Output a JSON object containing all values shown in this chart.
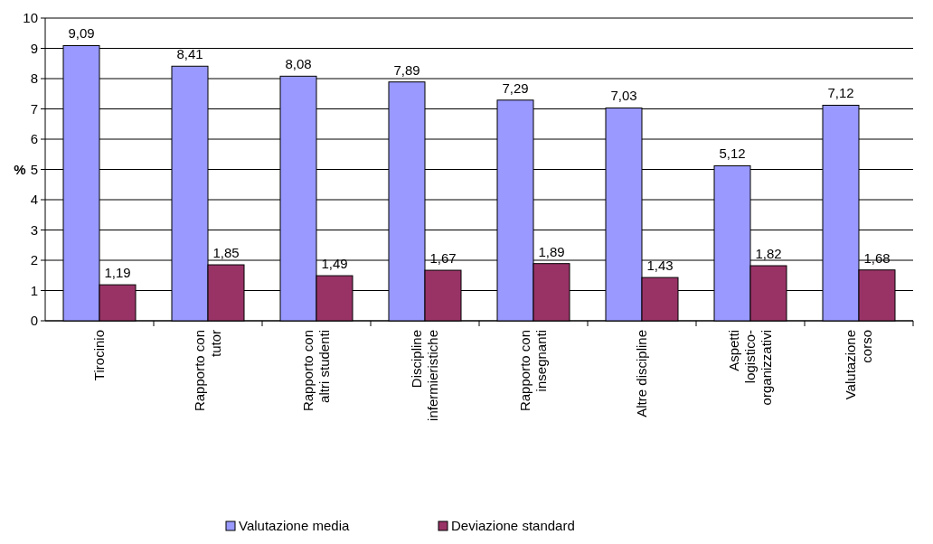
{
  "chart_data": {
    "type": "bar",
    "ylabel": "%",
    "categories": [
      "Tirocinio",
      "Rapporto con\ntutor",
      "Rapporto con\naltri studenti",
      "Discipline\ninfermieristiche",
      "Rapporto con\ninsegnanti",
      "Altre discipline",
      "Aspetti\nlogistico-\norganizzativi",
      "Valutazione\ncorso"
    ],
    "series": [
      {
        "name": "Valutazione media",
        "color": "#9999ff",
        "values": [
          9.09,
          8.41,
          8.08,
          7.89,
          7.29,
          7.03,
          5.12,
          7.12
        ],
        "value_labels": [
          "9,09",
          "8,41",
          "8,08",
          "7,89",
          "7,29",
          "7,03",
          "5,12",
          "7,12"
        ]
      },
      {
        "name": "Deviazione standard",
        "color": "#993366",
        "values": [
          1.19,
          1.85,
          1.49,
          1.67,
          1.89,
          1.43,
          1.82,
          1.68
        ],
        "value_labels": [
          "1,19",
          "1,85",
          "1,49",
          "1,67",
          "1,89",
          "1,43",
          "1,82",
          "1,68"
        ]
      }
    ],
    "ylim": [
      0,
      10
    ],
    "yticks": [
      0,
      1,
      2,
      3,
      4,
      5,
      6,
      7,
      8,
      9,
      10
    ],
    "grid": "y",
    "legend": "bottom"
  }
}
